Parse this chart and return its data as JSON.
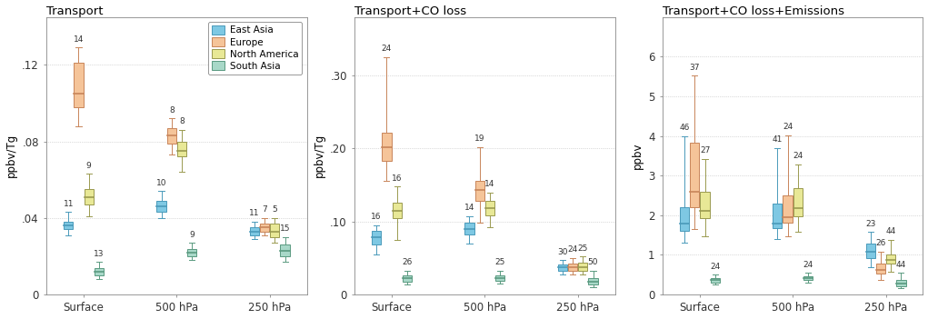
{
  "panels": [
    {
      "title": "Transport",
      "ylabel": "ppbv/Tg",
      "ylim": [
        0,
        0.145
      ],
      "yticks": [
        0,
        0.04,
        0.08,
        0.12
      ],
      "yticklabels": [
        "0",
        ".04",
        ".08",
        ".12"
      ],
      "groups": [
        "Surface",
        "500 hPa",
        "250 hPa"
      ],
      "series": {
        "East Asia": {
          "color": "#7ec8e3",
          "edge_color": "#4a9aba",
          "boxes": [
            {
              "whislo": 0.031,
              "q1": 0.034,
              "med": 0.036,
              "q3": 0.038,
              "whishi": 0.043,
              "label": "11"
            },
            {
              "whislo": 0.04,
              "q1": 0.043,
              "med": 0.046,
              "q3": 0.049,
              "whishi": 0.054,
              "label": "10"
            },
            {
              "whislo": 0.029,
              "q1": 0.031,
              "med": 0.033,
              "q3": 0.035,
              "whishi": 0.038,
              "label": "11"
            }
          ]
        },
        "Europe": {
          "color": "#f5c499",
          "edge_color": "#c8855a",
          "boxes": [
            {
              "whislo": 0.088,
              "q1": 0.098,
              "med": 0.105,
              "q3": 0.121,
              "whishi": 0.129,
              "label": "14"
            },
            {
              "whislo": 0.073,
              "q1": 0.079,
              "med": 0.083,
              "q3": 0.087,
              "whishi": 0.092,
              "label": "8"
            },
            {
              "whislo": 0.031,
              "q1": 0.033,
              "med": 0.035,
              "q3": 0.037,
              "whishi": 0.04,
              "label": "7"
            }
          ]
        },
        "North America": {
          "color": "#e8e896",
          "edge_color": "#9a9a50",
          "boxes": [
            {
              "whislo": 0.041,
              "q1": 0.047,
              "med": 0.051,
              "q3": 0.055,
              "whishi": 0.063,
              "label": "9"
            },
            {
              "whislo": 0.064,
              "q1": 0.072,
              "med": 0.075,
              "q3": 0.08,
              "whishi": 0.086,
              "label": "8"
            },
            {
              "whislo": 0.027,
              "q1": 0.03,
              "med": 0.033,
              "q3": 0.037,
              "whishi": 0.04,
              "label": "5"
            }
          ]
        },
        "South Asia": {
          "color": "#a8d8c8",
          "edge_color": "#5a9a80",
          "boxes": [
            {
              "whislo": 0.008,
              "q1": 0.01,
              "med": 0.012,
              "q3": 0.014,
              "whishi": 0.017,
              "label": "13"
            },
            {
              "whislo": 0.018,
              "q1": 0.02,
              "med": 0.022,
              "q3": 0.024,
              "whishi": 0.027,
              "label": "9"
            },
            {
              "whislo": 0.017,
              "q1": 0.02,
              "med": 0.023,
              "q3": 0.026,
              "whishi": 0.03,
              "label": "15"
            }
          ]
        }
      }
    },
    {
      "title": "Transport+CO loss",
      "ylabel": "ppbv/Tg",
      "ylim": [
        0,
        0.38
      ],
      "yticks": [
        0,
        0.1,
        0.2,
        0.3
      ],
      "yticklabels": [
        "0",
        ".10",
        ".20",
        ".30"
      ],
      "groups": [
        "Surface",
        "500 hPa",
        "250 hPa"
      ],
      "series": {
        "East Asia": {
          "color": "#7ec8e3",
          "edge_color": "#4a9aba",
          "boxes": [
            {
              "whislo": 0.055,
              "q1": 0.068,
              "med": 0.079,
              "q3": 0.087,
              "whishi": 0.095,
              "label": "16"
            },
            {
              "whislo": 0.07,
              "q1": 0.082,
              "med": 0.09,
              "q3": 0.098,
              "whishi": 0.107,
              "label": "14"
            },
            {
              "whislo": 0.028,
              "q1": 0.033,
              "med": 0.037,
              "q3": 0.041,
              "whishi": 0.047,
              "label": "30"
            }
          ]
        },
        "Europe": {
          "color": "#f5c499",
          "edge_color": "#c8855a",
          "boxes": [
            {
              "whislo": 0.155,
              "q1": 0.183,
              "med": 0.202,
              "q3": 0.222,
              "whishi": 0.325,
              "label": "24"
            },
            {
              "whislo": 0.098,
              "q1": 0.128,
              "med": 0.143,
              "q3": 0.155,
              "whishi": 0.202,
              "label": "19"
            },
            {
              "whislo": 0.028,
              "q1": 0.033,
              "med": 0.037,
              "q3": 0.042,
              "whishi": 0.05,
              "label": "24"
            }
          ]
        },
        "North America": {
          "color": "#e8e896",
          "edge_color": "#9a9a50",
          "boxes": [
            {
              "whislo": 0.075,
              "q1": 0.105,
              "med": 0.115,
              "q3": 0.126,
              "whishi": 0.148,
              "label": "16"
            },
            {
              "whislo": 0.092,
              "q1": 0.108,
              "med": 0.118,
              "q3": 0.128,
              "whishi": 0.14,
              "label": "14"
            },
            {
              "whislo": 0.027,
              "q1": 0.033,
              "med": 0.038,
              "q3": 0.044,
              "whishi": 0.052,
              "label": "25"
            }
          ]
        },
        "South Asia": {
          "color": "#a8d8c8",
          "edge_color": "#5a9a80",
          "boxes": [
            {
              "whislo": 0.014,
              "q1": 0.018,
              "med": 0.022,
              "q3": 0.026,
              "whishi": 0.033,
              "label": "26"
            },
            {
              "whislo": 0.015,
              "q1": 0.019,
              "med": 0.022,
              "q3": 0.026,
              "whishi": 0.033,
              "label": "25"
            },
            {
              "whislo": 0.01,
              "q1": 0.014,
              "med": 0.018,
              "q3": 0.023,
              "whishi": 0.033,
              "label": "50"
            }
          ]
        }
      }
    },
    {
      "title": "Transport+CO loss+Emissions",
      "ylabel": "ppbv",
      "ylim": [
        0,
        7.0
      ],
      "yticks": [
        0,
        1,
        2,
        3,
        4,
        5,
        6
      ],
      "yticklabels": [
        "0",
        "1",
        "2",
        "3",
        "4",
        "5",
        "6"
      ],
      "groups": [
        "Surface",
        "500 hPa",
        "250 hPa"
      ],
      "series": {
        "East Asia": {
          "color": "#7ec8e3",
          "edge_color": "#4a9aba",
          "boxes": [
            {
              "whislo": 1.3,
              "q1": 1.6,
              "med": 1.78,
              "q3": 2.2,
              "whishi": 4.0,
              "label": "46"
            },
            {
              "whislo": 1.4,
              "q1": 1.68,
              "med": 1.78,
              "q3": 2.3,
              "whishi": 3.7,
              "label": "41"
            },
            {
              "whislo": 0.68,
              "q1": 0.92,
              "med": 1.08,
              "q3": 1.28,
              "whishi": 1.58,
              "label": "23"
            }
          ]
        },
        "Europe": {
          "color": "#f5c499",
          "edge_color": "#c8855a",
          "boxes": [
            {
              "whislo": 1.65,
              "q1": 2.2,
              "med": 2.6,
              "q3": 3.82,
              "whishi": 5.52,
              "label": "37"
            },
            {
              "whislo": 1.48,
              "q1": 1.82,
              "med": 1.95,
              "q3": 2.5,
              "whishi": 4.02,
              "label": "24"
            },
            {
              "whislo": 0.38,
              "q1": 0.52,
              "med": 0.63,
              "q3": 0.78,
              "whishi": 1.08,
              "label": "26"
            }
          ]
        },
        "North America": {
          "color": "#e8e896",
          "edge_color": "#9a9a50",
          "boxes": [
            {
              "whislo": 1.48,
              "q1": 1.92,
              "med": 2.12,
              "q3": 2.6,
              "whishi": 3.42,
              "label": "27"
            },
            {
              "whislo": 1.58,
              "q1": 1.98,
              "med": 2.18,
              "q3": 2.68,
              "whishi": 3.28,
              "label": "24"
            },
            {
              "whislo": 0.58,
              "q1": 0.78,
              "med": 0.88,
              "q3": 1.02,
              "whishi": 1.38,
              "label": "44"
            }
          ]
        },
        "South Asia": {
          "color": "#a8d8c8",
          "edge_color": "#5a9a80",
          "boxes": [
            {
              "whislo": 0.26,
              "q1": 0.31,
              "med": 0.36,
              "q3": 0.42,
              "whishi": 0.5,
              "label": "24"
            },
            {
              "whislo": 0.3,
              "q1": 0.36,
              "med": 0.41,
              "q3": 0.47,
              "whishi": 0.55,
              "label": "24"
            },
            {
              "whislo": 0.16,
              "q1": 0.22,
              "med": 0.27,
              "q3": 0.37,
              "whishi": 0.55,
              "label": "44"
            }
          ]
        }
      }
    }
  ],
  "legend_entries": [
    "East Asia",
    "Europe",
    "North America",
    "South Asia"
  ],
  "legend_colors": [
    "#7ec8e3",
    "#f5c499",
    "#e8e896",
    "#a8d8c8"
  ],
  "legend_edge_colors": [
    "#4a9aba",
    "#c8855a",
    "#9a9a50",
    "#5a9a80"
  ],
  "box_width": 0.1,
  "group_positions": [
    1.0,
    2.0,
    3.0
  ],
  "series_offsets": [
    -0.165,
    -0.055,
    0.055,
    0.165
  ],
  "background_color": "#ffffff"
}
